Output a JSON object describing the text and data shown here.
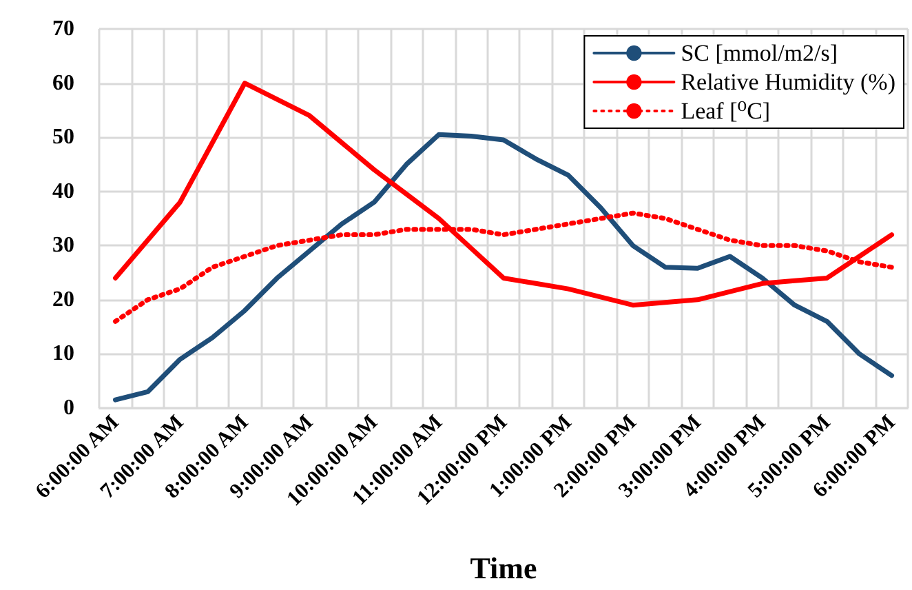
{
  "chart_data": {
    "type": "line",
    "xlabel": "Time",
    "categories": [
      "6:00:00 AM",
      null,
      "7:00:00 AM",
      null,
      "8:00:00 AM",
      null,
      "9:00:00 AM",
      null,
      "10:00:00 AM",
      null,
      "11:00:00 AM",
      null,
      "12:00:00 PM",
      null,
      "1:00:00 PM",
      null,
      "2:00:00 PM",
      null,
      "3:00:00 PM",
      null,
      "4:00:00 PM",
      null,
      "5:00:00 PM",
      null,
      "6:00:00 PM"
    ],
    "series": [
      {
        "name": "SC [mmol/m2/s]",
        "color": "#1f4e79",
        "line_style": "solid",
        "values": [
          1.5,
          3,
          9,
          13,
          18,
          24,
          29,
          34,
          38,
          45,
          50.5,
          50.2,
          49.5,
          46,
          43,
          37,
          30,
          26,
          25.8,
          28,
          24,
          19,
          16,
          10,
          6
        ]
      },
      {
        "name": "Relative Humidity (%)",
        "color": "#ff0000",
        "line_style": "solid",
        "values": [
          24,
          31,
          38,
          49,
          60,
          57,
          54,
          49,
          44,
          39.5,
          35,
          29.5,
          24,
          23,
          22,
          20.5,
          19,
          19.5,
          20,
          21.5,
          23,
          23.5,
          24,
          28,
          32
        ]
      },
      {
        "name": "Leaf [⁰C]",
        "color": "#ff0000",
        "line_style": "dotted",
        "values": [
          16,
          20,
          22,
          26,
          28,
          30,
          31,
          32,
          32,
          33,
          33,
          33,
          32,
          33,
          34,
          35,
          36,
          35,
          33,
          31,
          30,
          30,
          29,
          27,
          26
        ]
      }
    ],
    "ylim": [
      0,
      70
    ],
    "yticks": [
      0,
      10,
      20,
      30,
      40,
      50,
      60,
      70
    ],
    "grid": true,
    "legend": "top right",
    "marker": "none"
  }
}
